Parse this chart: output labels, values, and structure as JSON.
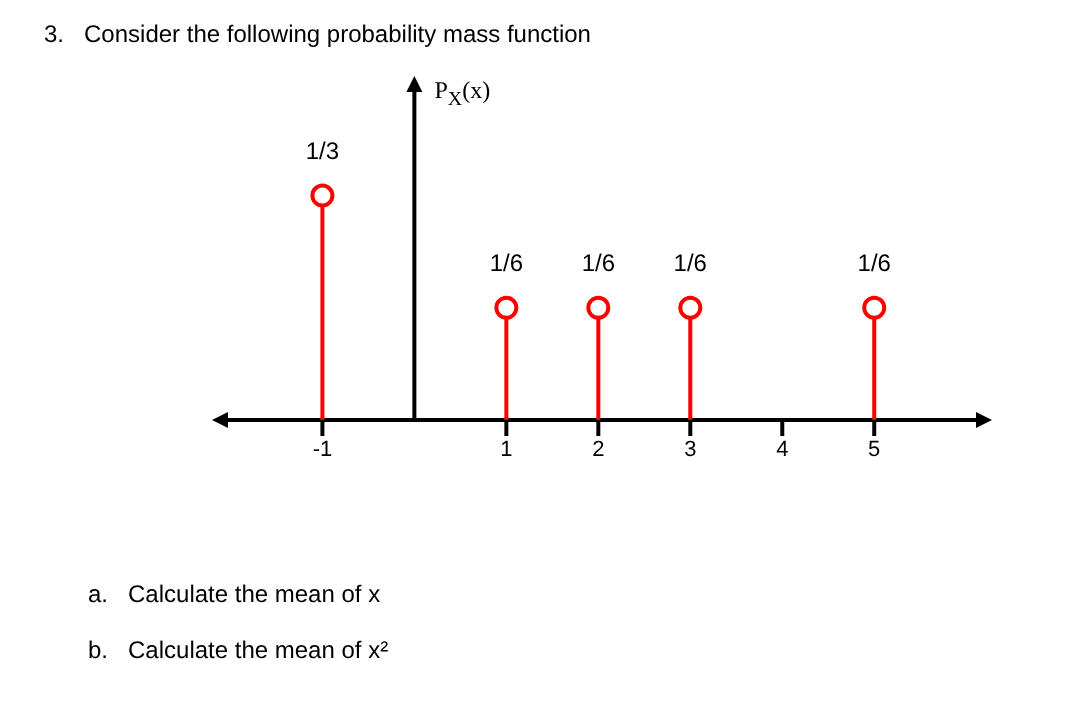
{
  "chart_data": {
    "type": "lollipop",
    "title": "3.   Consider the following probability mass function",
    "ylabel": "P$_{X}$(x)",
    "annotations": [
      "a.   Calculate the mean of x",
      "b.   Calculate the mean of x²"
    ],
    "x": [
      -1,
      1,
      2,
      3,
      5
    ],
    "values": [
      0.3333,
      0.1667,
      0.1667,
      0.1667,
      0.1667
    ],
    "value_labels": [
      "1/3",
      "1/6",
      "1/6",
      "1/6",
      "1/6"
    ],
    "color": "#ff0000",
    "marker": "circle",
    "xlim": [
      -2.07,
      6.15
    ],
    "xticks": [
      -1,
      1,
      2,
      3,
      4,
      5
    ],
    "ylim": [
      0,
      0.49
    ],
    "tick_labels": "x"
  }
}
